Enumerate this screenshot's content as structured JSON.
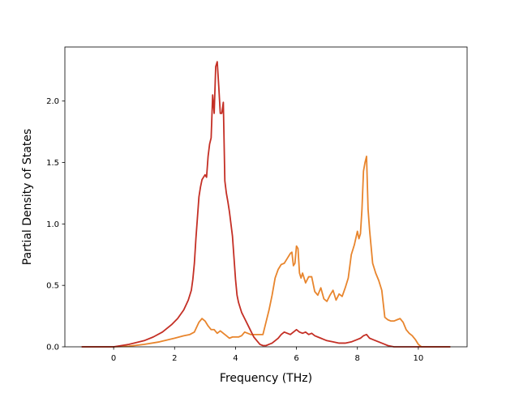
{
  "chart_data": {
    "type": "line",
    "title": "",
    "xlabel": "Frequency (THz)",
    "ylabel": "Partial Density of States",
    "xlim": [
      -1.6,
      11.6
    ],
    "ylim": [
      0.0,
      2.44
    ],
    "xticks": [
      0,
      2,
      4,
      6,
      8,
      10
    ],
    "yticks": [
      0.0,
      0.5,
      1.0,
      1.5,
      2.0
    ],
    "xtick_labels": [
      "0",
      "2",
      "4",
      "6",
      "8",
      "10"
    ],
    "ytick_labels": [
      "0.0",
      "0.5",
      "1.0",
      "1.5",
      "2.0"
    ],
    "grid": false,
    "legend": "none",
    "series": [
      {
        "color": "#e8852d",
        "x": [
          -1.05,
          0.0,
          0.5,
          1.0,
          1.5,
          2.0,
          2.3,
          2.5,
          2.65,
          2.8,
          2.9,
          3.0,
          3.1,
          3.2,
          3.3,
          3.4,
          3.5,
          3.6,
          3.7,
          3.8,
          3.9,
          4.0,
          4.1,
          4.2,
          4.3,
          4.4,
          4.5,
          4.6,
          4.7,
          4.8,
          4.9,
          5.0,
          5.1,
          5.2,
          5.3,
          5.4,
          5.5,
          5.6,
          5.7,
          5.8,
          5.85,
          5.9,
          5.95,
          6.0,
          6.05,
          6.1,
          6.15,
          6.2,
          6.3,
          6.4,
          6.5,
          6.6,
          6.7,
          6.8,
          6.9,
          7.0,
          7.1,
          7.2,
          7.3,
          7.4,
          7.5,
          7.6,
          7.7,
          7.8,
          7.9,
          8.0,
          8.05,
          8.1,
          8.15,
          8.2,
          8.25,
          8.3,
          8.35,
          8.4,
          8.5,
          8.6,
          8.7,
          8.8,
          8.9,
          9.0,
          9.1,
          9.2,
          9.3,
          9.4,
          9.5,
          9.6,
          9.7,
          9.8,
          9.9,
          10.0,
          10.05,
          10.1,
          10.2,
          11.05
        ],
        "y": [
          0.0,
          0.0,
          0.005,
          0.02,
          0.04,
          0.07,
          0.09,
          0.1,
          0.12,
          0.2,
          0.23,
          0.21,
          0.17,
          0.14,
          0.14,
          0.11,
          0.13,
          0.11,
          0.09,
          0.07,
          0.08,
          0.08,
          0.08,
          0.09,
          0.12,
          0.11,
          0.1,
          0.1,
          0.1,
          0.1,
          0.1,
          0.2,
          0.3,
          0.42,
          0.56,
          0.63,
          0.67,
          0.68,
          0.72,
          0.76,
          0.77,
          0.66,
          0.68,
          0.82,
          0.8,
          0.6,
          0.56,
          0.6,
          0.52,
          0.57,
          0.57,
          0.45,
          0.42,
          0.48,
          0.39,
          0.37,
          0.42,
          0.46,
          0.38,
          0.43,
          0.41,
          0.48,
          0.56,
          0.75,
          0.83,
          0.94,
          0.88,
          0.92,
          1.12,
          1.43,
          1.5,
          1.55,
          1.12,
          0.95,
          0.68,
          0.6,
          0.54,
          0.46,
          0.24,
          0.22,
          0.21,
          0.21,
          0.22,
          0.23,
          0.2,
          0.14,
          0.11,
          0.09,
          0.06,
          0.02,
          0.01,
          0.0,
          0.0,
          0.0
        ]
      },
      {
        "color": "#c42f25",
        "x": [
          -1.05,
          0.0,
          0.5,
          1.0,
          1.3,
          1.6,
          1.9,
          2.1,
          2.3,
          2.45,
          2.55,
          2.6,
          2.65,
          2.7,
          2.75,
          2.8,
          2.85,
          2.9,
          3.0,
          3.05,
          3.1,
          3.15,
          3.2,
          3.25,
          3.3,
          3.35,
          3.4,
          3.45,
          3.5,
          3.55,
          3.6,
          3.65,
          3.7,
          3.75,
          3.8,
          3.9,
          4.0,
          4.05,
          4.1,
          4.15,
          4.2,
          4.3,
          4.4,
          4.5,
          4.6,
          4.7,
          4.8,
          4.9,
          5.0,
          5.1,
          5.2,
          5.3,
          5.4,
          5.5,
          5.6,
          5.7,
          5.8,
          5.9,
          6.0,
          6.1,
          6.2,
          6.3,
          6.4,
          6.5,
          6.6,
          6.7,
          6.8,
          6.9,
          7.0,
          7.2,
          7.4,
          7.6,
          7.8,
          8.0,
          8.1,
          8.2,
          8.3,
          8.4,
          8.5,
          8.6,
          8.7,
          8.8,
          8.9,
          9.0,
          9.2,
          9.5,
          10.0,
          11.05
        ],
        "y": [
          0.0,
          0.0,
          0.02,
          0.05,
          0.08,
          0.12,
          0.18,
          0.23,
          0.3,
          0.38,
          0.46,
          0.55,
          0.68,
          0.88,
          1.05,
          1.22,
          1.3,
          1.36,
          1.4,
          1.38,
          1.55,
          1.65,
          1.7,
          2.05,
          1.9,
          2.28,
          2.32,
          2.12,
          1.9,
          1.9,
          1.99,
          1.35,
          1.25,
          1.18,
          1.1,
          0.9,
          0.55,
          0.42,
          0.36,
          0.32,
          0.28,
          0.23,
          0.18,
          0.13,
          0.08,
          0.05,
          0.02,
          0.01,
          0.01,
          0.02,
          0.03,
          0.05,
          0.07,
          0.1,
          0.12,
          0.11,
          0.1,
          0.12,
          0.14,
          0.12,
          0.11,
          0.12,
          0.1,
          0.11,
          0.09,
          0.08,
          0.07,
          0.06,
          0.05,
          0.04,
          0.03,
          0.03,
          0.04,
          0.06,
          0.07,
          0.09,
          0.1,
          0.07,
          0.06,
          0.05,
          0.04,
          0.03,
          0.02,
          0.01,
          0.0,
          0.0,
          0.0,
          0.0
        ]
      }
    ]
  }
}
